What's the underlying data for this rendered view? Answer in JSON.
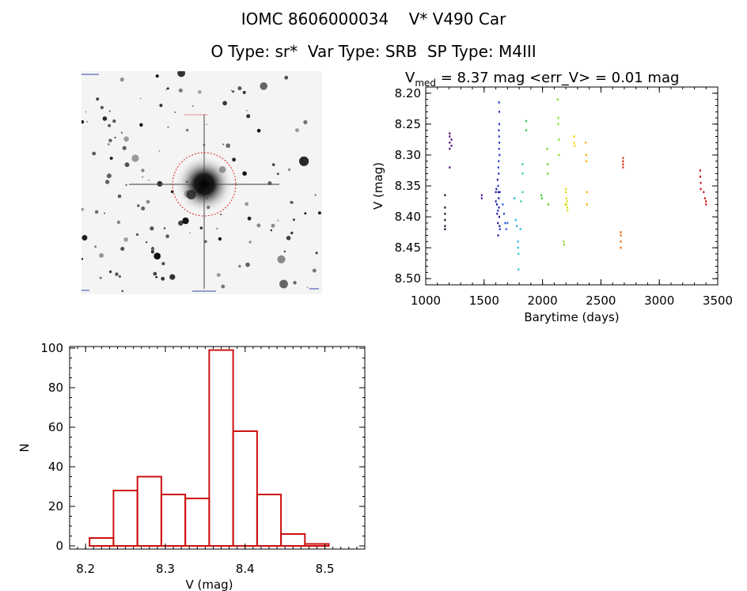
{
  "header": {
    "title_line1": "IOMC 8606000034    V* V490 Car",
    "title_line2": "O Type: sr*  Var Type: SRB  SP Type: M4III"
  },
  "lightcurve_title": {
    "prefix": "V",
    "subscript": "med",
    "rest": " = 8.37 mag <err_V> = 0.01 mag"
  },
  "colors": {
    "histogram_bar": "#cc1111",
    "axis": "#000000",
    "finder_circle": "#dd2222"
  },
  "finder_image": {
    "background": "#f2f2f2",
    "circle_style": "dotted red"
  },
  "chart_data": [
    {
      "type": "scatter",
      "title": "V = 8.37 mag <err_V> = 0.01 mag",
      "xlabel": "Barytime (days)",
      "ylabel": "V (mag)",
      "xlim": [
        1000,
        3500
      ],
      "ylim": [
        8.51,
        8.19
      ],
      "y_inverted": true,
      "xticks": [
        1000,
        1500,
        2000,
        2500,
        3000,
        3500
      ],
      "yticks": [
        8.2,
        8.25,
        8.3,
        8.35,
        8.4,
        8.45,
        8.5
      ],
      "xtick_labels": [
        "1000",
        "1500",
        "2000",
        "2500",
        "3000",
        "3500"
      ],
      "ytick_labels": [
        "8.20",
        "8.25",
        "8.30",
        "8.35",
        "8.40",
        "8.45",
        "8.50"
      ],
      "grid": false,
      "points": [
        {
          "x": 1165,
          "y": 8.365,
          "c": "#150022"
        },
        {
          "x": 1165,
          "y": 8.385,
          "c": "#150022"
        },
        {
          "x": 1165,
          "y": 8.395,
          "c": "#150022"
        },
        {
          "x": 1165,
          "y": 8.405,
          "c": "#150022"
        },
        {
          "x": 1165,
          "y": 8.415,
          "c": "#150022"
        },
        {
          "x": 1165,
          "y": 8.42,
          "c": "#150022"
        },
        {
          "x": 1205,
          "y": 8.265,
          "c": "#4a0a6e"
        },
        {
          "x": 1205,
          "y": 8.27,
          "c": "#4a0a6e"
        },
        {
          "x": 1205,
          "y": 8.28,
          "c": "#4a0a6e"
        },
        {
          "x": 1205,
          "y": 8.29,
          "c": "#4a0a6e"
        },
        {
          "x": 1205,
          "y": 8.32,
          "c": "#4a0a6e"
        },
        {
          "x": 1220,
          "y": 8.275,
          "c": "#4a0a6e"
        },
        {
          "x": 1220,
          "y": 8.285,
          "c": "#4a0a6e"
        },
        {
          "x": 1480,
          "y": 8.365,
          "c": "#5a1a9a"
        },
        {
          "x": 1480,
          "y": 8.37,
          "c": "#5a1a9a"
        },
        {
          "x": 1600,
          "y": 8.36,
          "c": "#1a1aa0"
        },
        {
          "x": 1600,
          "y": 8.375,
          "c": "#1a1aa0"
        },
        {
          "x": 1605,
          "y": 8.355,
          "c": "#1a1aa0"
        },
        {
          "x": 1610,
          "y": 8.38,
          "c": "#1a1aa0"
        },
        {
          "x": 1612,
          "y": 8.395,
          "c": "#1a1aa0"
        },
        {
          "x": 1615,
          "y": 8.34,
          "c": "#1a1aa0"
        },
        {
          "x": 1618,
          "y": 8.41,
          "c": "#1a1aa0"
        },
        {
          "x": 1620,
          "y": 8.43,
          "c": "#1a1aa0"
        },
        {
          "x": 1622,
          "y": 8.36,
          "c": "#1a1aa0"
        },
        {
          "x": 1625,
          "y": 8.37,
          "c": "#1a1aa0"
        },
        {
          "x": 1627,
          "y": 8.385,
          "c": "#1a1aa0"
        },
        {
          "x": 1630,
          "y": 8.4,
          "c": "#1a1aa0"
        },
        {
          "x": 1632,
          "y": 8.415,
          "c": "#1a1aa0"
        },
        {
          "x": 1620,
          "y": 8.35,
          "c": "#2233cc"
        },
        {
          "x": 1625,
          "y": 8.33,
          "c": "#2233cc"
        },
        {
          "x": 1625,
          "y": 8.31,
          "c": "#2233cc"
        },
        {
          "x": 1628,
          "y": 8.29,
          "c": "#2233cc"
        },
        {
          "x": 1628,
          "y": 8.27,
          "c": "#2233cc"
        },
        {
          "x": 1630,
          "y": 8.25,
          "c": "#2233cc"
        },
        {
          "x": 1630,
          "y": 8.23,
          "c": "#2233cc"
        },
        {
          "x": 1628,
          "y": 8.215,
          "c": "#2233cc"
        },
        {
          "x": 1626,
          "y": 8.26,
          "c": "#2233cc"
        },
        {
          "x": 1630,
          "y": 8.28,
          "c": "#2233cc"
        },
        {
          "x": 1632,
          "y": 8.3,
          "c": "#2233cc"
        },
        {
          "x": 1622,
          "y": 8.32,
          "c": "#2233cc"
        },
        {
          "x": 1618,
          "y": 8.39,
          "c": "#2233cc"
        },
        {
          "x": 1635,
          "y": 8.42,
          "c": "#2233cc"
        },
        {
          "x": 1635,
          "y": 8.36,
          "c": "#2233cc"
        },
        {
          "x": 1660,
          "y": 8.38,
          "c": "#2255dd"
        },
        {
          "x": 1670,
          "y": 8.395,
          "c": "#2255dd"
        },
        {
          "x": 1680,
          "y": 8.41,
          "c": "#2255dd"
        },
        {
          "x": 1690,
          "y": 8.42,
          "c": "#2266dd"
        },
        {
          "x": 1700,
          "y": 8.41,
          "c": "#2266dd"
        },
        {
          "x": 1760,
          "y": 8.37,
          "c": "#22aadd"
        },
        {
          "x": 1770,
          "y": 8.405,
          "c": "#22aadd"
        },
        {
          "x": 1780,
          "y": 8.415,
          "c": "#22aadd"
        },
        {
          "x": 1790,
          "y": 8.44,
          "c": "#22bbdd"
        },
        {
          "x": 1790,
          "y": 8.45,
          "c": "#22bbdd"
        },
        {
          "x": 1795,
          "y": 8.46,
          "c": "#22bbdd"
        },
        {
          "x": 1795,
          "y": 8.485,
          "c": "#22bbdd"
        },
        {
          "x": 1810,
          "y": 8.42,
          "c": "#22bbdd"
        },
        {
          "x": 1815,
          "y": 8.375,
          "c": "#22ccaa"
        },
        {
          "x": 1830,
          "y": 8.315,
          "c": "#22ccaa"
        },
        {
          "x": 1830,
          "y": 8.33,
          "c": "#22ccaa"
        },
        {
          "x": 1830,
          "y": 8.36,
          "c": "#22ccaa"
        },
        {
          "x": 1860,
          "y": 8.245,
          "c": "#22cc55"
        },
        {
          "x": 1860,
          "y": 8.26,
          "c": "#22cc55"
        },
        {
          "x": 1990,
          "y": 8.365,
          "c": "#33cc33"
        },
        {
          "x": 1995,
          "y": 8.37,
          "c": "#33cc33"
        },
        {
          "x": 2040,
          "y": 8.29,
          "c": "#66cc22"
        },
        {
          "x": 2045,
          "y": 8.315,
          "c": "#66cc22"
        },
        {
          "x": 2045,
          "y": 8.33,
          "c": "#66cc22"
        },
        {
          "x": 2050,
          "y": 8.38,
          "c": "#66cc22"
        },
        {
          "x": 2130,
          "y": 8.21,
          "c": "#88dd22"
        },
        {
          "x": 2135,
          "y": 8.24,
          "c": "#88dd22"
        },
        {
          "x": 2135,
          "y": 8.25,
          "c": "#88dd22"
        },
        {
          "x": 2140,
          "y": 8.275,
          "c": "#88dd22"
        },
        {
          "x": 2140,
          "y": 8.3,
          "c": "#88dd22"
        },
        {
          "x": 2180,
          "y": 8.44,
          "c": "#99cc22"
        },
        {
          "x": 2185,
          "y": 8.445,
          "c": "#99cc22"
        },
        {
          "x": 2200,
          "y": 8.355,
          "c": "#dddd11"
        },
        {
          "x": 2205,
          "y": 8.37,
          "c": "#dddd11"
        },
        {
          "x": 2205,
          "y": 8.38,
          "c": "#dddd11"
        },
        {
          "x": 2210,
          "y": 8.375,
          "c": "#dddd11"
        },
        {
          "x": 2210,
          "y": 8.385,
          "c": "#dddd11"
        },
        {
          "x": 2215,
          "y": 8.39,
          "c": "#dddd11"
        },
        {
          "x": 2200,
          "y": 8.36,
          "c": "#dddd11"
        },
        {
          "x": 2195,
          "y": 8.38,
          "c": "#dddd11"
        },
        {
          "x": 2270,
          "y": 8.27,
          "c": "#ffcc00"
        },
        {
          "x": 2270,
          "y": 8.28,
          "c": "#ffcc00"
        },
        {
          "x": 2275,
          "y": 8.285,
          "c": "#ffcc00"
        },
        {
          "x": 2370,
          "y": 8.28,
          "c": "#ffaa00"
        },
        {
          "x": 2375,
          "y": 8.3,
          "c": "#ffaa00"
        },
        {
          "x": 2375,
          "y": 8.31,
          "c": "#ffaa00"
        },
        {
          "x": 2380,
          "y": 8.36,
          "c": "#ffaa00"
        },
        {
          "x": 2380,
          "y": 8.38,
          "c": "#ffaa00"
        },
        {
          "x": 2670,
          "y": 8.425,
          "c": "#ee6600"
        },
        {
          "x": 2670,
          "y": 8.43,
          "c": "#ee6600"
        },
        {
          "x": 2670,
          "y": 8.44,
          "c": "#ee6600"
        },
        {
          "x": 2670,
          "y": 8.45,
          "c": "#ee6600"
        },
        {
          "x": 2690,
          "y": 8.305,
          "c": "#dd3311"
        },
        {
          "x": 2690,
          "y": 8.31,
          "c": "#dd3311"
        },
        {
          "x": 2690,
          "y": 8.315,
          "c": "#dd3311"
        },
        {
          "x": 2690,
          "y": 8.32,
          "c": "#dd3311"
        },
        {
          "x": 3350,
          "y": 8.325,
          "c": "#cc1111"
        },
        {
          "x": 3350,
          "y": 8.335,
          "c": "#cc1111"
        },
        {
          "x": 3355,
          "y": 8.345,
          "c": "#cc1111"
        },
        {
          "x": 3355,
          "y": 8.355,
          "c": "#cc1111"
        },
        {
          "x": 3380,
          "y": 8.36,
          "c": "#cc1111"
        },
        {
          "x": 3390,
          "y": 8.37,
          "c": "#cc1111"
        },
        {
          "x": 3400,
          "y": 8.375,
          "c": "#cc1111"
        },
        {
          "x": 3400,
          "y": 8.38,
          "c": "#cc1111"
        }
      ]
    },
    {
      "type": "bar",
      "subtype": "histogram",
      "xlabel": "V (mag)",
      "ylabel": "N",
      "xlim": [
        8.18,
        8.55
      ],
      "ylim": [
        0,
        100
      ],
      "xticks": [
        8.2,
        8.3,
        8.4,
        8.5
      ],
      "yticks": [
        0,
        20,
        40,
        60,
        80,
        100
      ],
      "xtick_labels": [
        "8.2",
        "8.3",
        "8.4",
        "8.5"
      ],
      "ytick_labels": [
        "0",
        "20",
        "40",
        "60",
        "80",
        "100"
      ],
      "bin_width": 0.03,
      "bin_starts": [
        8.205,
        8.235,
        8.265,
        8.295,
        8.325,
        8.355,
        8.385,
        8.415,
        8.445,
        8.475
      ],
      "values": [
        4,
        28,
        35,
        26,
        24,
        99,
        58,
        26,
        6,
        1
      ],
      "grid": false
    }
  ]
}
